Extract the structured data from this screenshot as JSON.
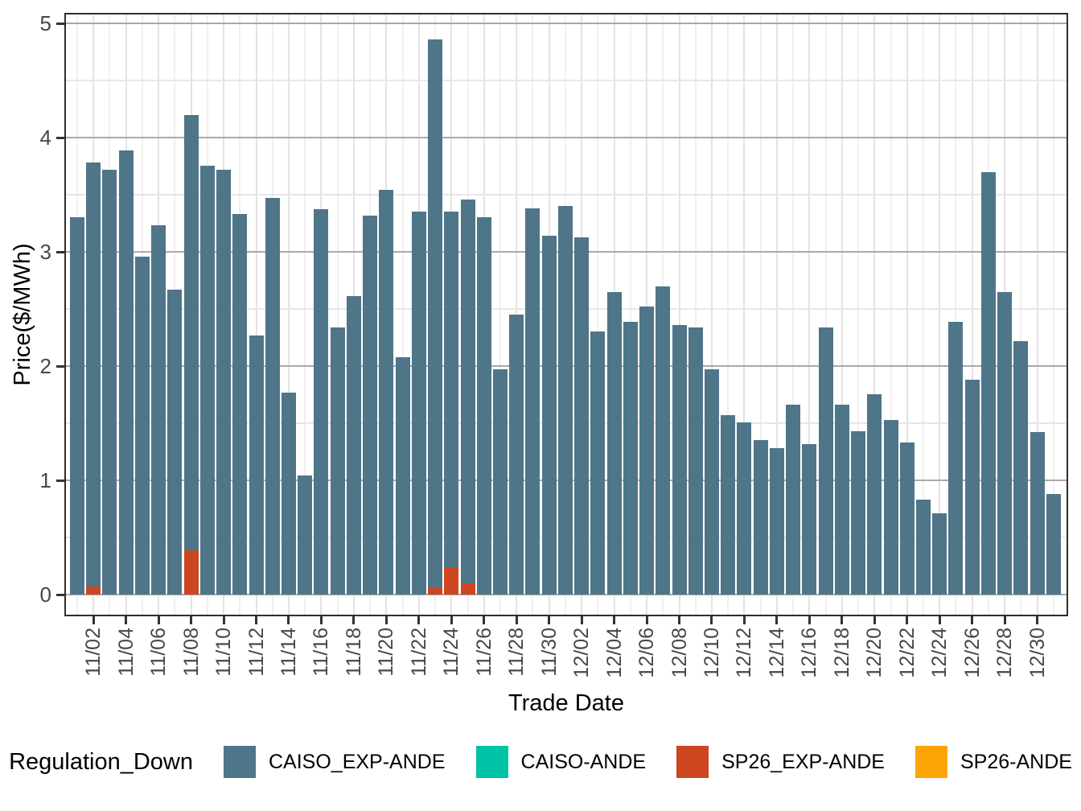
{
  "chart_data": {
    "type": "bar",
    "title": "",
    "xlabel": "Trade Date",
    "ylabel": "Price($/MWh)",
    "ylim": [
      0,
      5
    ],
    "y_ticks": [
      "0",
      "1",
      "2",
      "3",
      "4",
      "5"
    ],
    "grid": "on",
    "legend_position": "bottom",
    "legend_title": "Regulation_Down",
    "legend": [
      {
        "label": "CAISO_EXP-ANDE",
        "color": "#4f7589"
      },
      {
        "label": "CAISO-ANDE",
        "color": "#00c3a6"
      },
      {
        "label": "SP26_EXP-ANDE",
        "color": "#cc461f"
      },
      {
        "label": "SP26-ANDE",
        "color": "#fda506"
      }
    ],
    "categories": [
      "11/01",
      "11/02",
      "11/03",
      "11/04",
      "11/05",
      "11/06",
      "11/07",
      "11/08",
      "11/09",
      "11/10",
      "11/11",
      "11/12",
      "11/13",
      "11/14",
      "11/15",
      "11/16",
      "11/17",
      "11/18",
      "11/19",
      "11/20",
      "11/21",
      "11/22",
      "11/23",
      "11/24",
      "11/25",
      "11/26",
      "11/27",
      "11/28",
      "11/29",
      "11/30",
      "12/01",
      "12/02",
      "12/03",
      "12/04",
      "12/05",
      "12/06",
      "12/07",
      "12/08",
      "12/09",
      "12/10",
      "12/11",
      "12/12",
      "12/13",
      "12/14",
      "12/15",
      "12/16",
      "12/17",
      "12/18",
      "12/19",
      "12/20",
      "12/21",
      "12/22",
      "12/23",
      "12/24",
      "12/25",
      "12/26",
      "12/27",
      "12/28",
      "12/29",
      "12/30",
      "12/31"
    ],
    "x_tick_labels": [
      "11/02",
      "11/04",
      "11/06",
      "11/08",
      "11/10",
      "11/12",
      "11/14",
      "11/16",
      "11/18",
      "11/20",
      "11/22",
      "11/24",
      "11/26",
      "11/28",
      "11/30",
      "12/02",
      "12/04",
      "12/06",
      "12/08",
      "12/10",
      "12/12",
      "12/14",
      "12/16",
      "12/18",
      "12/20",
      "12/22",
      "12/24",
      "12/26",
      "12/28",
      "12/30"
    ],
    "series": [
      {
        "name": "CAISO_EXP-ANDE",
        "color": "#4f7589",
        "values": [
          3.3,
          3.78,
          3.72,
          3.89,
          2.96,
          3.23,
          2.67,
          4.2,
          3.75,
          3.72,
          3.33,
          2.27,
          3.47,
          1.77,
          1.04,
          3.37,
          2.34,
          2.61,
          3.32,
          3.54,
          2.08,
          3.35,
          4.86,
          3.35,
          3.46,
          3.3,
          1.97,
          2.45,
          3.38,
          3.14,
          3.4,
          3.13,
          2.3,
          2.65,
          2.39,
          2.52,
          2.7,
          2.36,
          2.34,
          1.97,
          1.57,
          1.51,
          1.35,
          1.28,
          1.66,
          1.32,
          2.34,
          1.66,
          1.43,
          1.75,
          1.53,
          1.33,
          0.83,
          0.71,
          2.39,
          1.88,
          3.7,
          2.65,
          2.22,
          1.42,
          0.88
        ]
      },
      {
        "name": "SP26_EXP-ANDE",
        "color": "#cc461f",
        "values_by_date": {
          "11/02": 0.07,
          "11/08": 0.39,
          "11/23": 0.06,
          "11/24": 0.24,
          "11/25": 0.1
        }
      }
    ]
  }
}
